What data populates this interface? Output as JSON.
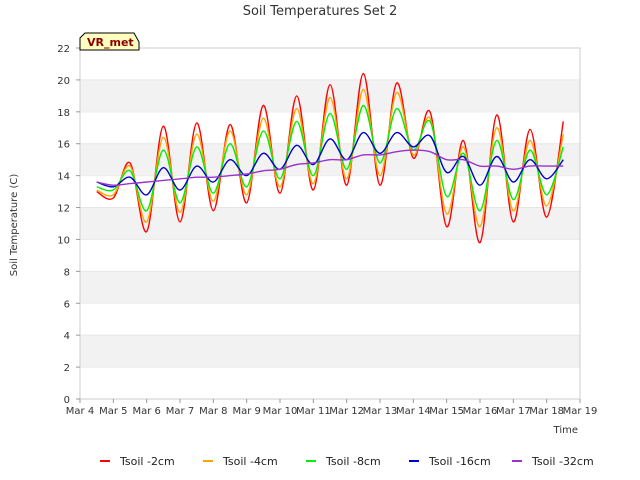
{
  "chart_data": {
    "type": "line",
    "title": "Soil Temperatures Set 2",
    "xlabel": "Time",
    "ylabel": "Soil Temperature (C)",
    "xlim": [
      "Mar 4",
      "Mar 19"
    ],
    "ylim": [
      0,
      22
    ],
    "x_ticks": [
      "Mar 4",
      "Mar 5",
      "Mar 6",
      "Mar 7",
      "Mar 8",
      "Mar 9",
      "Mar 10",
      "Mar 11",
      "Mar 12",
      "Mar 13",
      "Mar 14",
      "Mar 15",
      "Mar 16",
      "Mar 17",
      "Mar 18",
      "Mar 19"
    ],
    "y_ticks": [
      0,
      2,
      4,
      6,
      8,
      10,
      12,
      14,
      16,
      18,
      20,
      22
    ],
    "grid": "horizontal bands",
    "legend_position": "bottom",
    "annotation": "VR_met",
    "x": [
      "Mar 4 12:00",
      "Mar 5 00:00",
      "Mar 5 12:00",
      "Mar 6 00:00",
      "Mar 6 12:00",
      "Mar 7 00:00",
      "Mar 7 12:00",
      "Mar 8 00:00",
      "Mar 8 12:00",
      "Mar 9 00:00",
      "Mar 9 12:00",
      "Mar 10 00:00",
      "Mar 10 12:00",
      "Mar 11 00:00",
      "Mar 11 12:00",
      "Mar 12 00:00",
      "Mar 12 12:00",
      "Mar 13 00:00",
      "Mar 13 12:00",
      "Mar 14 00:00",
      "Mar 14 12:00",
      "Mar 15 00:00",
      "Mar 15 12:00",
      "Mar 16 00:00",
      "Mar 16 12:00",
      "Mar 17 00:00",
      "Mar 17 12:00",
      "Mar 18 00:00",
      "Mar 18 12:00"
    ],
    "series": [
      {
        "name": "Tsoil -2cm",
        "color": "#ff0000",
        "values": [
          13.0,
          12.6,
          14.8,
          10.5,
          17.1,
          11.1,
          17.3,
          11.8,
          17.2,
          12.3,
          18.4,
          12.9,
          19.0,
          13.1,
          19.7,
          13.4,
          20.4,
          13.4,
          19.8,
          15.1,
          18.0,
          10.8,
          16.2,
          9.8,
          17.8,
          11.1,
          16.9,
          11.4,
          17.4
        ]
      },
      {
        "name": "Tsoil -4cm",
        "color": "#ffa500",
        "values": [
          13.1,
          12.8,
          14.6,
          11.1,
          16.4,
          11.7,
          16.6,
          12.4,
          16.8,
          12.8,
          17.6,
          13.3,
          18.2,
          13.5,
          18.9,
          13.8,
          19.4,
          14.0,
          19.2,
          15.3,
          17.6,
          11.6,
          15.8,
          10.8,
          17.0,
          11.8,
          16.2,
          12.1,
          16.6
        ]
      },
      {
        "name": "Tsoil -8cm",
        "color": "#00ee00",
        "values": [
          13.3,
          13.1,
          14.3,
          11.8,
          15.6,
          12.3,
          15.8,
          12.9,
          16.0,
          13.3,
          16.8,
          13.8,
          17.4,
          14.0,
          17.9,
          14.4,
          18.4,
          14.8,
          18.2,
          15.6,
          17.4,
          12.7,
          15.4,
          11.8,
          16.2,
          12.5,
          15.6,
          12.8,
          15.8
        ]
      },
      {
        "name": "Tsoil -16cm",
        "color": "#0000cc",
        "values": [
          13.6,
          13.3,
          13.9,
          12.8,
          14.5,
          13.1,
          14.6,
          13.6,
          15.0,
          14.0,
          15.4,
          14.4,
          15.9,
          14.7,
          16.3,
          15.0,
          16.7,
          15.4,
          16.7,
          15.8,
          16.5,
          14.2,
          15.2,
          13.4,
          15.2,
          13.6,
          15.0,
          13.8,
          15.0
        ]
      },
      {
        "name": "Tsoil -32cm",
        "color": "#9a32cd",
        "values": [
          13.6,
          13.4,
          13.5,
          13.6,
          13.7,
          13.8,
          13.9,
          13.9,
          14.0,
          14.1,
          14.3,
          14.4,
          14.7,
          14.8,
          15.0,
          15.0,
          15.3,
          15.3,
          15.5,
          15.6,
          15.5,
          15.0,
          15.0,
          14.6,
          14.6,
          14.4,
          14.6,
          14.6,
          14.6
        ]
      }
    ]
  }
}
